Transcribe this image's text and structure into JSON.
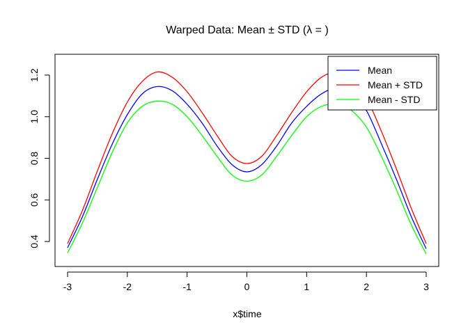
{
  "chart_data": {
    "type": "line",
    "title": "Warped Data: Mean ± STD (λ = )",
    "xlabel": "x$time",
    "ylabel": "",
    "xlim": [
      -3,
      3
    ],
    "ylim": [
      0.34,
      1.24
    ],
    "xticks": [
      "-3",
      "-2",
      "-1",
      "0",
      "1",
      "2",
      "3"
    ],
    "yticks": [
      "0.4",
      "0.6",
      "0.8",
      "1.0",
      "1.2"
    ],
    "legend_position": "top-right",
    "grid": false,
    "x": [
      -3,
      -2.75,
      -2.5,
      -2.25,
      -2,
      -1.75,
      -1.5,
      -1.25,
      -1,
      -0.75,
      -0.5,
      -0.25,
      0,
      0.25,
      0.5,
      0.75,
      1,
      1.25,
      1.5,
      1.75,
      2,
      2.25,
      2.5,
      2.75,
      3
    ],
    "series": [
      {
        "name": "Mean",
        "color": "#0000ff",
        "values": [
          0.37,
          0.52,
          0.7,
          0.87,
          1.01,
          1.11,
          1.145,
          1.125,
          1.06,
          0.97,
          0.86,
          0.77,
          0.735,
          0.77,
          0.86,
          0.97,
          1.05,
          1.11,
          1.14,
          1.12,
          1.03,
          0.87,
          0.7,
          0.52,
          0.365
        ]
      },
      {
        "name": "Mean + STD",
        "color": "#ff0000",
        "values": [
          0.39,
          0.55,
          0.74,
          0.92,
          1.07,
          1.17,
          1.215,
          1.19,
          1.12,
          1.02,
          0.91,
          0.81,
          0.775,
          0.81,
          0.91,
          1.02,
          1.12,
          1.19,
          1.215,
          1.19,
          1.09,
          0.93,
          0.75,
          0.56,
          0.39
        ]
      },
      {
        "name": "Mean - STD",
        "color": "#00ff00",
        "values": [
          0.345,
          0.49,
          0.66,
          0.83,
          0.97,
          1.05,
          1.075,
          1.06,
          1.0,
          0.91,
          0.81,
          0.72,
          0.69,
          0.72,
          0.81,
          0.91,
          1.0,
          1.05,
          1.06,
          1.03,
          0.95,
          0.81,
          0.65,
          0.48,
          0.34
        ]
      }
    ]
  }
}
